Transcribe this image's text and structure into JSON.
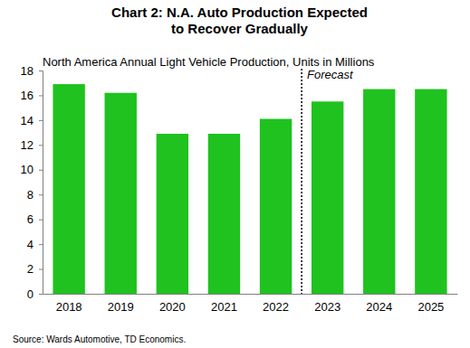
{
  "chart_data": {
    "type": "bar",
    "title": "Chart 2: N.A. Auto Production Expected to Recover Gradually",
    "subtitle": "North America Annual Light Vehicle Production, Units in Millions",
    "source": "Source: Wards Automotive, TD Economics.",
    "categories": [
      "2018",
      "2019",
      "2020",
      "2021",
      "2022",
      "2023",
      "2024",
      "2025"
    ],
    "values": [
      16.9,
      16.2,
      12.9,
      12.9,
      14.1,
      15.5,
      16.5,
      16.5
    ],
    "color": "#1fc21f",
    "ylim": [
      0,
      18
    ],
    "yticks": [
      0,
      2,
      4,
      6,
      8,
      10,
      12,
      14,
      16,
      18
    ],
    "grid": false,
    "annotations": [
      {
        "text": "Forecast",
        "x": "2023"
      }
    ]
  }
}
